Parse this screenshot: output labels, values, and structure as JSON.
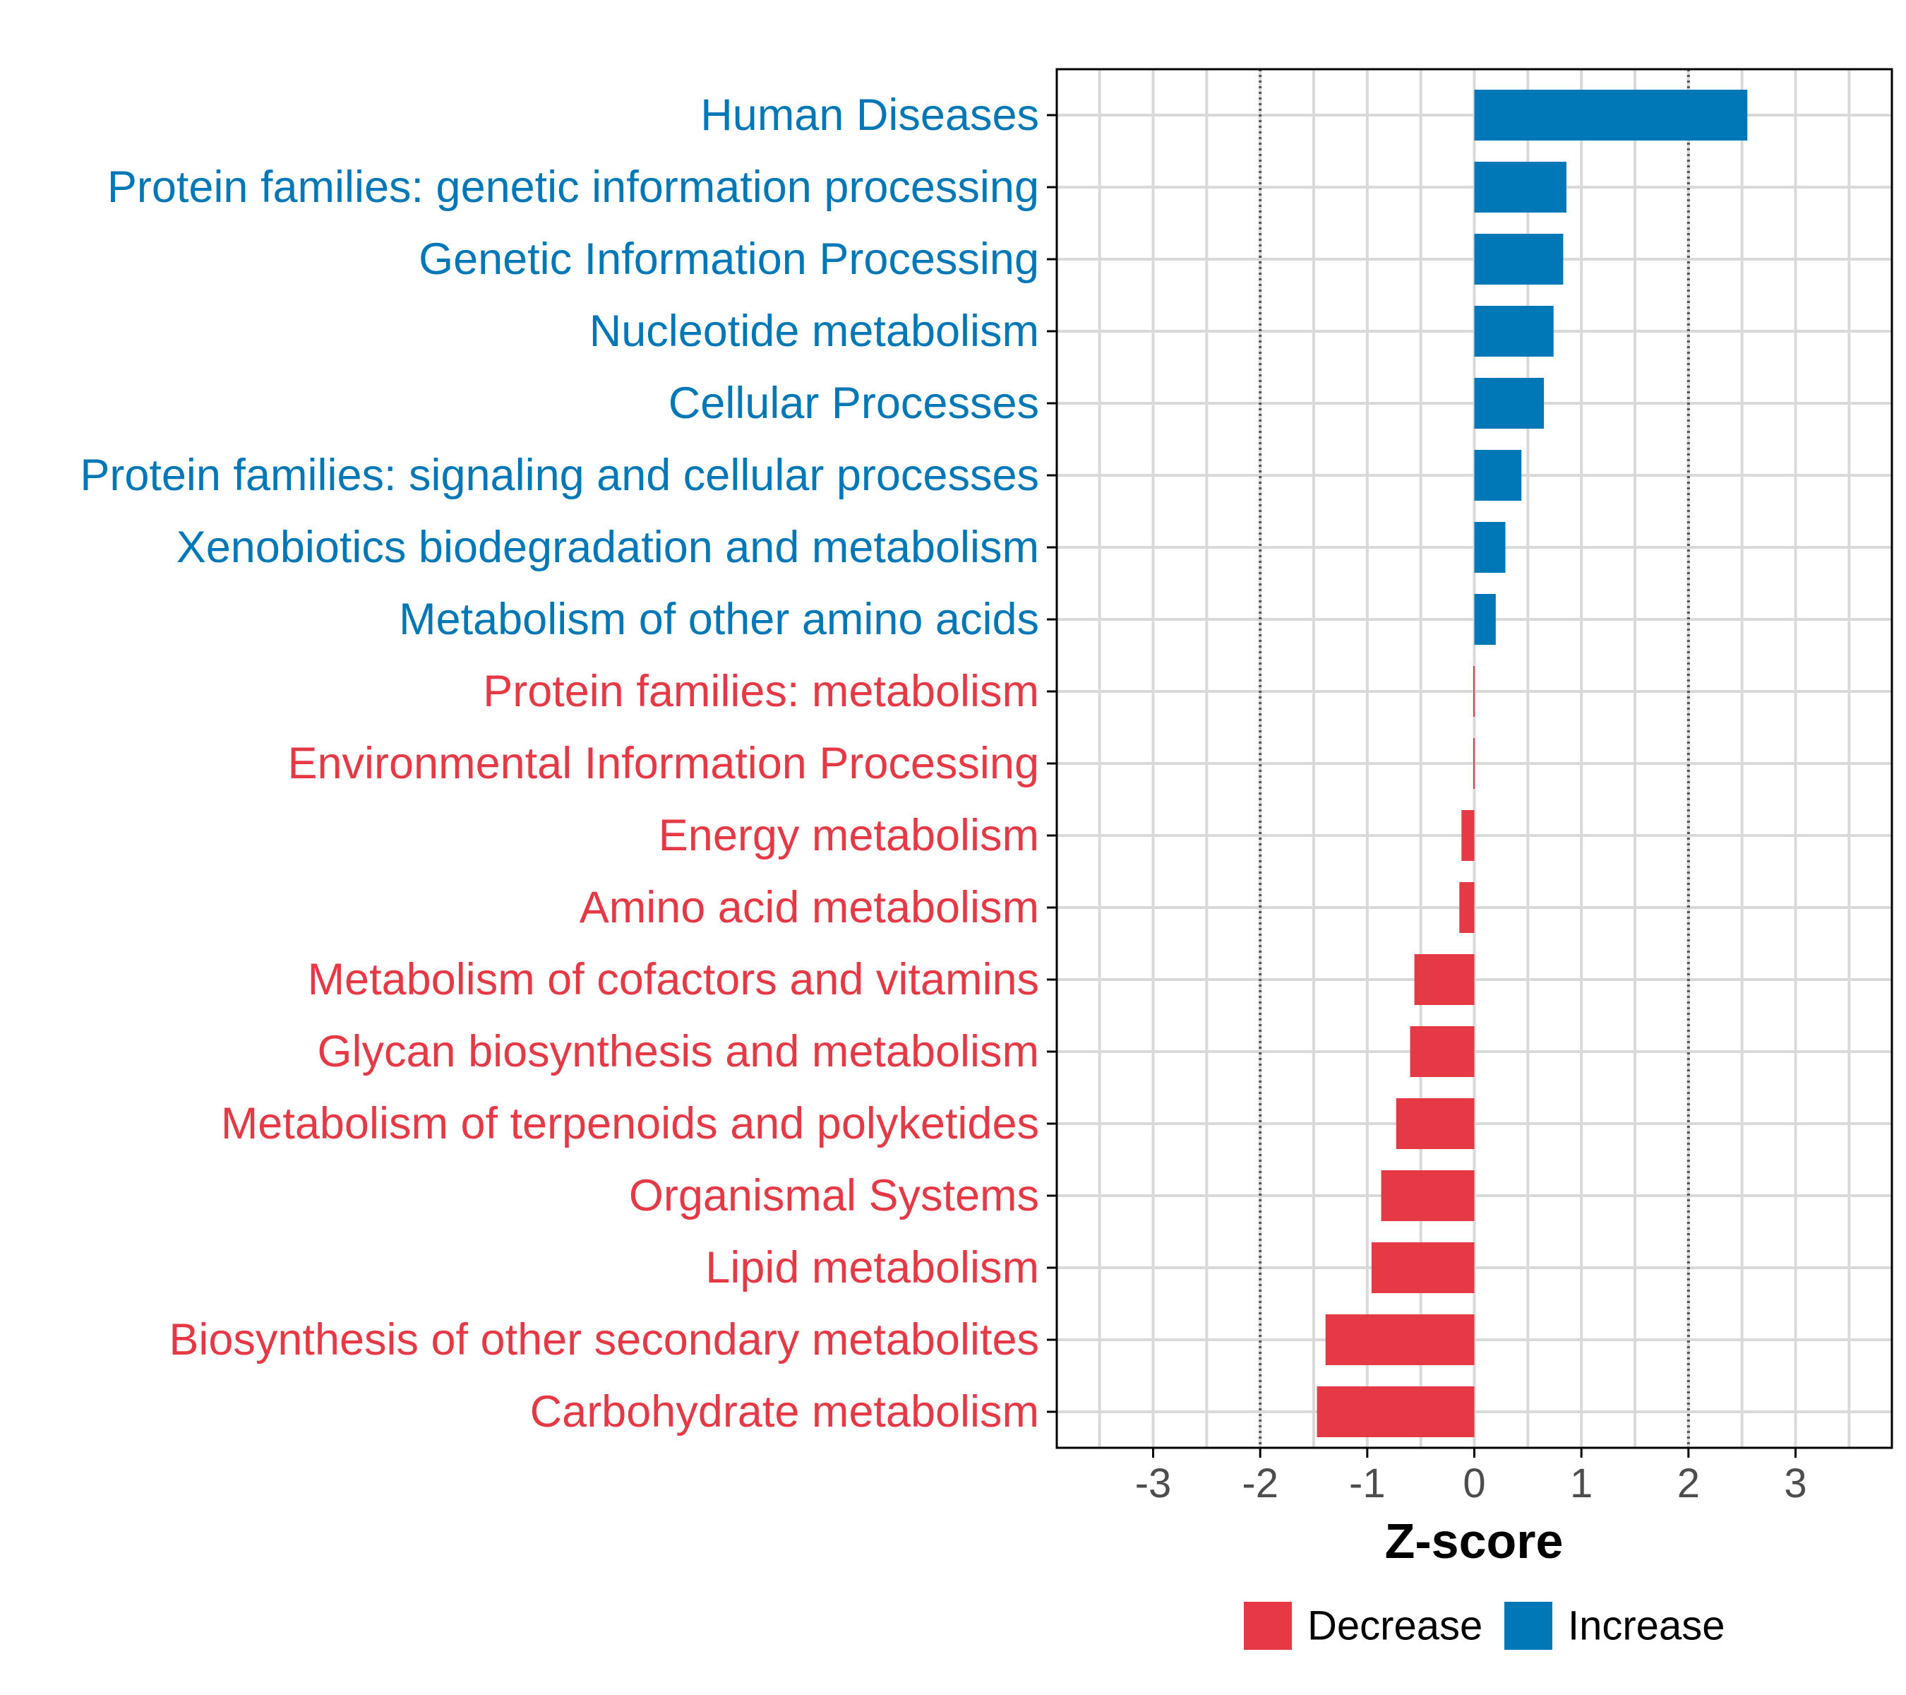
{
  "colors": {
    "increase": "#0077b6",
    "decrease": "#e63946",
    "grid": "#d9d9d9",
    "axis": "#000000",
    "tick_text": "#4d4d4d",
    "reference_line": "#555555"
  },
  "chart_data": {
    "type": "bar",
    "orientation": "horizontal",
    "title": "",
    "xlabel": "Z-score",
    "ylabel": "",
    "xlim": [
      -3.9,
      3.9
    ],
    "x_ticks": [
      -3,
      -2,
      -1,
      0,
      1,
      2,
      3
    ],
    "x_tick_labels": [
      "-3",
      "-2",
      "-1",
      "0",
      "1",
      "2",
      "3"
    ],
    "reference_lines": [
      -2,
      2
    ],
    "grid": true,
    "legend_position": "bottom",
    "legend": [
      {
        "key": "decrease",
        "label": "Decrease"
      },
      {
        "key": "increase",
        "label": "Increase"
      }
    ],
    "categories": [
      "Human Diseases",
      "Protein families: genetic information processing",
      "Genetic Information Processing",
      "Nucleotide metabolism",
      "Cellular Processes",
      "Protein families: signaling and cellular processes",
      "Xenobiotics biodegradation and metabolism",
      "Metabolism of other amino acids",
      "Protein families: metabolism",
      "Environmental Information Processing",
      "Energy metabolism",
      "Amino acid metabolism",
      "Metabolism of cofactors and vitamins",
      "Glycan biosynthesis and metabolism",
      "Metabolism of terpenoids and polyketides",
      "Organismal Systems",
      "Lipid metabolism",
      "Biosynthesis of other secondary metabolites",
      "Carbohydrate metabolism"
    ],
    "values": [
      2.55,
      0.86,
      0.83,
      0.74,
      0.65,
      0.44,
      0.29,
      0.2,
      -0.01,
      -0.01,
      -0.12,
      -0.14,
      -0.56,
      -0.6,
      -0.73,
      -0.87,
      -0.96,
      -1.39,
      -1.47
    ],
    "groups": [
      "increase",
      "increase",
      "increase",
      "increase",
      "increase",
      "increase",
      "increase",
      "increase",
      "decrease",
      "decrease",
      "decrease",
      "decrease",
      "decrease",
      "decrease",
      "decrease",
      "decrease",
      "decrease",
      "decrease",
      "decrease"
    ]
  }
}
